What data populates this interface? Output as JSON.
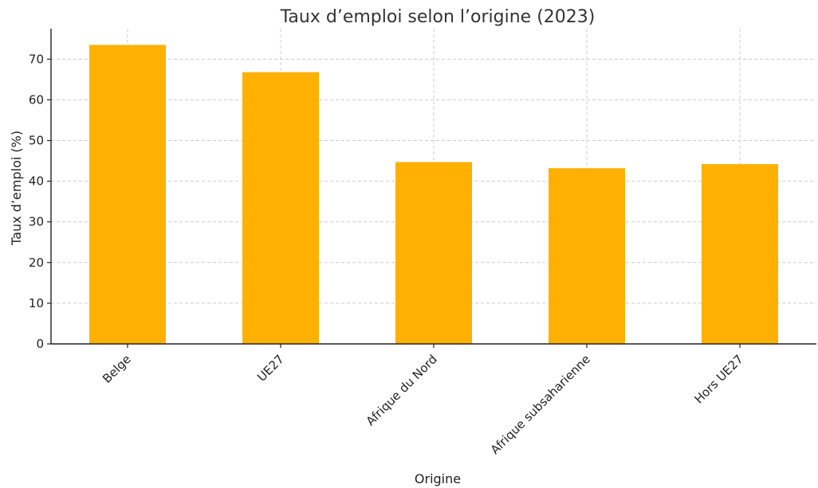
{
  "chart_data": {
    "type": "bar",
    "title": "Taux d’emploi selon l’origine (2023)",
    "xlabel": "Origine",
    "ylabel": "Taux d’emploi (%)",
    "categories": [
      "Belge",
      "UE27",
      "Afrique du Nord",
      "Afrique subsaharienne",
      "Hors UE27"
    ],
    "values": [
      73.5,
      66.8,
      44.7,
      43.2,
      44.2
    ],
    "ylim": [
      0,
      77.5
    ],
    "yticks": [
      0,
      10,
      20,
      30,
      40,
      50,
      60,
      70
    ],
    "grid": true,
    "bar_color": "#FFB000",
    "grid_color": "#cccccc",
    "axis_color": "#222222"
  }
}
